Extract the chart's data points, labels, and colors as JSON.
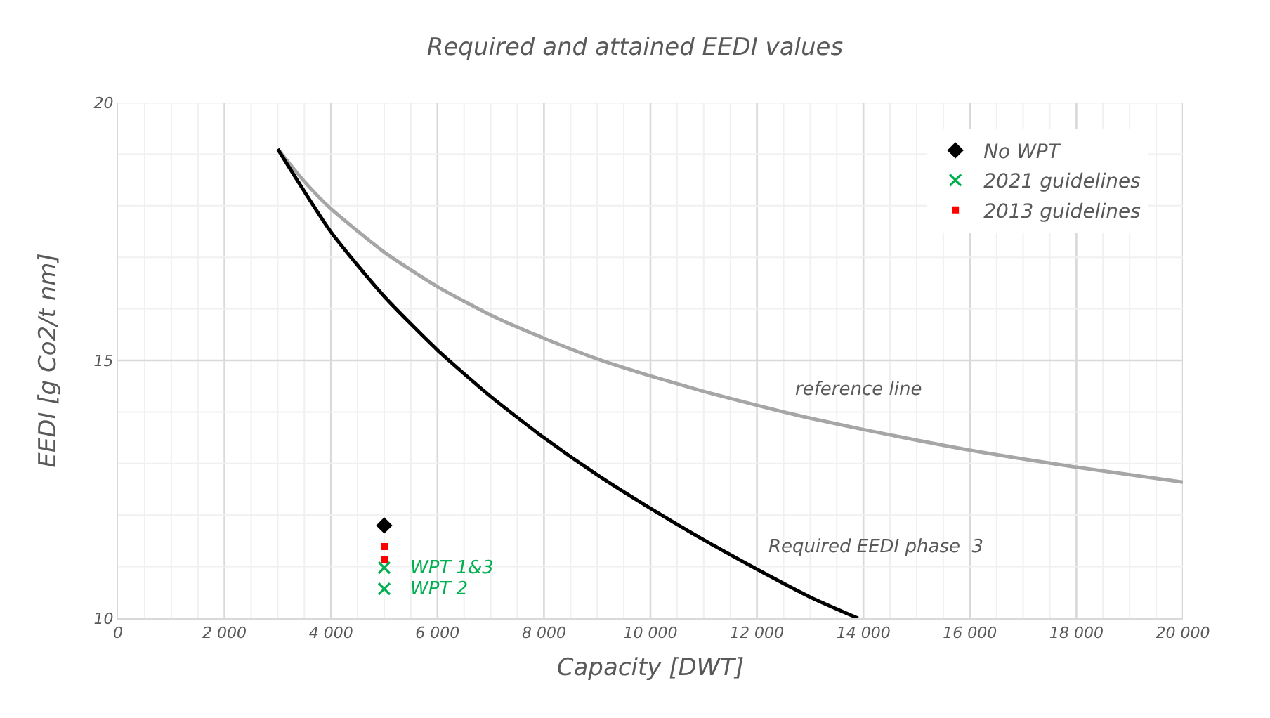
{
  "chart_data": {
    "type": "line",
    "title": "Required and attained EEDI values",
    "xlabel": "Capacity [DWT]",
    "ylabel": "EEDI [g Co2/t nm]",
    "series": [
      {
        "color": "#a6a6a6",
        "marker": "none",
        "x": [
          3000,
          3500,
          4000,
          5000,
          6000,
          7000,
          8000,
          9000,
          10000,
          11000,
          12000,
          12500,
          13000,
          14000,
          16000,
          18000,
          20000
        ],
        "values": [
          19.1,
          18.47,
          17.94,
          17.1,
          16.43,
          15.88,
          15.43,
          15.03,
          14.7,
          14.4,
          14.13,
          14.0,
          13.88,
          13.66,
          13.26,
          12.93,
          12.64
        ]
      },
      {
        "color": "#000000",
        "marker": "none",
        "x": [
          3000,
          4000,
          5000,
          6000,
          7000,
          8000,
          9000,
          10000,
          11000,
          12000,
          13000,
          13900
        ],
        "values": [
          19.1,
          17.49,
          16.24,
          15.2,
          14.3,
          13.5,
          12.78,
          12.13,
          11.52,
          10.95,
          10.41,
          10.0
        ]
      },
      {
        "type": "scatter",
        "name": "No WPT",
        "color": "#000000",
        "marker": "diamond",
        "x": [
          5000
        ],
        "values": [
          11.8
        ]
      },
      {
        "type": "scatter",
        "name": "2021 guidelines",
        "color": "#00b050",
        "marker": "cross",
        "x": [
          5000,
          5000
        ],
        "values": [
          10.98,
          10.57
        ]
      },
      {
        "type": "scatter",
        "name": "2013 guidelines",
        "color": "#ff0000",
        "marker": "square",
        "x": [
          5000,
          5000
        ],
        "values": [
          11.39,
          11.14
        ]
      }
    ],
    "annotations": [
      {
        "text": "reference line",
        "x": 12500,
        "y": 14.0
      },
      {
        "text": "Required EEDI phase  3",
        "x": 12000,
        "y": 10.95
      },
      {
        "text": "WPT 1&3",
        "x": 5000,
        "y": 10.98
      },
      {
        "text": "WPT 2",
        "x": 5000,
        "y": 10.57
      }
    ],
    "xlim": [
      0,
      20000
    ],
    "ylim": [
      10,
      20
    ],
    "xticks": [
      {
        "value": 0,
        "label": "0"
      },
      {
        "value": 500,
        "label": null
      },
      {
        "value": 1000,
        "label": null
      },
      {
        "value": 1500,
        "label": null
      },
      {
        "value": 2000,
        "label": "2 000"
      },
      {
        "value": 2500,
        "label": null
      },
      {
        "value": 3000,
        "label": null
      },
      {
        "value": 3500,
        "label": null
      },
      {
        "value": 4000,
        "label": "4 000"
      },
      {
        "value": 4500,
        "label": null
      },
      {
        "value": 5000,
        "label": null
      },
      {
        "value": 5500,
        "label": null
      },
      {
        "value": 6000,
        "label": "6 000"
      },
      {
        "value": 6500,
        "label": null
      },
      {
        "value": 7000,
        "label": null
      },
      {
        "value": 7500,
        "label": null
      },
      {
        "value": 8000,
        "label": "8 000"
      },
      {
        "value": 8500,
        "label": null
      },
      {
        "value": 9000,
        "label": null
      },
      {
        "value": 9500,
        "label": null
      },
      {
        "value": 10000,
        "label": "10 000"
      },
      {
        "value": 10500,
        "label": null
      },
      {
        "value": 11000,
        "label": null
      },
      {
        "value": 11500,
        "label": null
      },
      {
        "value": 12000,
        "label": "12 000"
      },
      {
        "value": 12500,
        "label": null
      },
      {
        "value": 13000,
        "label": null
      },
      {
        "value": 13500,
        "label": null
      },
      {
        "value": 14000,
        "label": "14 000"
      },
      {
        "value": 14500,
        "label": null
      },
      {
        "value": 15000,
        "label": null
      },
      {
        "value": 15500,
        "label": null
      },
      {
        "value": 16000,
        "label": "16 000"
      },
      {
        "value": 16500,
        "label": null
      },
      {
        "value": 17000,
        "label": null
      },
      {
        "value": 17500,
        "label": null
      },
      {
        "value": 18000,
        "label": "18 000"
      },
      {
        "value": 18500,
        "label": null
      },
      {
        "value": 19000,
        "label": null
      },
      {
        "value": 19500,
        "label": null
      },
      {
        "value": 20000,
        "label": "20 000"
      }
    ],
    "yticks": [
      10,
      {
        "value": 11,
        "label": null
      },
      {
        "value": 12,
        "label": null
      },
      {
        "value": 13,
        "label": null
      },
      {
        "value": 14,
        "label": null
      },
      15,
      {
        "value": 16,
        "label": null
      },
      {
        "value": 17,
        "label": null
      },
      {
        "value": 18,
        "label": null
      },
      {
        "value": 19,
        "label": null
      },
      20
    ],
    "grid": true,
    "legend": "top right"
  }
}
